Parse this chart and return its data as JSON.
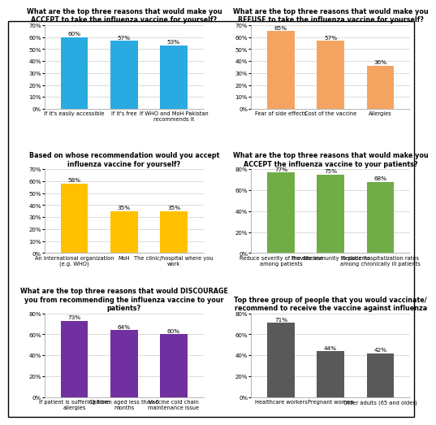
{
  "charts": [
    {
      "title": "What are the top three reasons that would make you\nACCEPT to take the influenza vaccine for yourself?",
      "categories": [
        "If it's easily accessible",
        "If it's free",
        "If WHO and MoH Pakistan\nrecommends it"
      ],
      "values": [
        60,
        57,
        53
      ],
      "color": "#29ABE2",
      "ylim": [
        0,
        70
      ],
      "yticks": [
        0,
        10,
        20,
        30,
        40,
        50,
        60,
        70
      ],
      "ytick_labels": [
        "0%",
        "10%",
        "20%",
        "30%",
        "40%",
        "50%",
        "60%",
        "70%"
      ]
    },
    {
      "title": "What are the top three reasons that would make you\nREFUSE to take the influenza vaccine for yourself?",
      "categories": [
        "Fear of side effects",
        "Cost of the vaccine",
        "Allergies"
      ],
      "values": [
        65,
        57,
        36
      ],
      "color": "#F4A460",
      "ylim": [
        0,
        70
      ],
      "yticks": [
        0,
        10,
        20,
        30,
        40,
        50,
        60,
        70
      ],
      "ytick_labels": [
        "0%",
        "10%",
        "20%",
        "30%",
        "40%",
        "50%",
        "60%",
        "70%"
      ]
    },
    {
      "title": "Based on whose recommendation would you accept\ninfluenza vaccine for yourself?",
      "categories": [
        "An international organization\n(e.g. WHO)",
        "MoH",
        "The clinic/hospital where you\nwork"
      ],
      "values": [
        58,
        35,
        35
      ],
      "color": "#FFC000",
      "ylim": [
        0,
        70
      ],
      "yticks": [
        0,
        10,
        20,
        30,
        40,
        50,
        60,
        70
      ],
      "ytick_labels": [
        "0%",
        "10%",
        "20%",
        "30%",
        "40%",
        "50%",
        "60%",
        "70%"
      ]
    },
    {
      "title": "What are the top three reasons that would make you\nACCEPT the influenza vaccine to your patients?",
      "categories": [
        "Reduce severity of the disease\namong patients",
        "Provide immunity to patients",
        "Reduce hospitalization rates\namong chronically ill patients"
      ],
      "values": [
        77,
        75,
        68
      ],
      "color": "#70AD47",
      "ylim": [
        0,
        80
      ],
      "yticks": [
        0,
        20,
        40,
        60,
        80
      ],
      "ytick_labels": [
        "0%",
        "20%",
        "40%",
        "60%",
        "80%"
      ]
    },
    {
      "title": "What are the top three reasons that would DISCOURAGE\nyou from recommending the influenza vaccine to your\npatients?",
      "categories": [
        "If patient is suffering from\nallergies",
        "Children aged less than 6\nmonths",
        "Vaccine cold chain\nmaintenance issue"
      ],
      "values": [
        73,
        64,
        60
      ],
      "color": "#7030A0",
      "ylim": [
        0,
        80
      ],
      "yticks": [
        0,
        20,
        40,
        60,
        80
      ],
      "ytick_labels": [
        "0%",
        "20%",
        "40%",
        "60%",
        "80%"
      ]
    },
    {
      "title": "Top three group of people that you would vaccinate/\nrecommend to receive the vaccine against influenza",
      "categories": [
        "Healthcare workers",
        "Pregnant women",
        "Older adults (65 and older)"
      ],
      "values": [
        71,
        44,
        42
      ],
      "color": "#595959",
      "ylim": [
        0,
        80
      ],
      "yticks": [
        0,
        20,
        40,
        60,
        80
      ],
      "ytick_labels": [
        "0%",
        "20%",
        "40%",
        "60%",
        "80%"
      ]
    }
  ],
  "border_color": "#000000",
  "grid_color": "#C0C0C0",
  "figure_bg": "#FFFFFF"
}
